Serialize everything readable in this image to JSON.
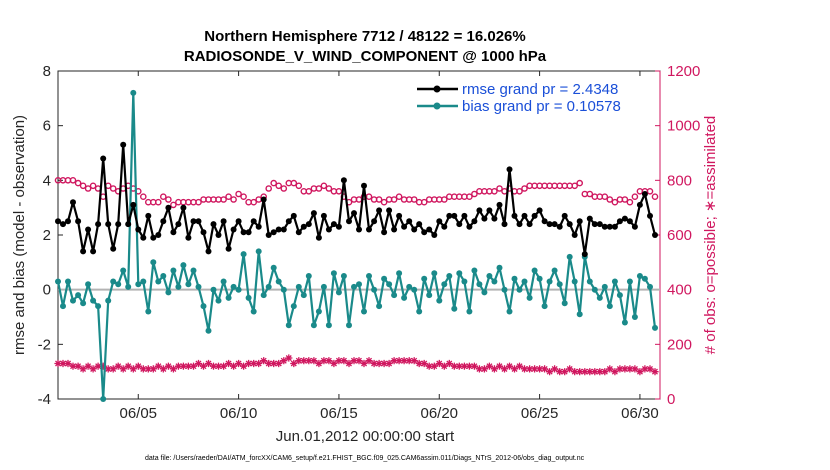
{
  "chart_data": {
    "type": "line",
    "title": "Northern Hemisphere 7712 / 48122 = 16.026%",
    "subtitle": "RADIOSONDE_V_WIND_COMPONENT @ 1000 hPa",
    "xlabel": "Jun.01,2012 00:00:00 start",
    "ylabel_left": "rmse and bias (model - observation)",
    "ylabel_right": "# of obs: o=possible; ∗=assimilated",
    "footnote": "data file: /Users/raeder/DAI/ATM_forcXX/CAM6_setup/f.e21.FHIST_BGC.f09_025.CAM6assim.011/Diags_NTrS_2012-06/obs_diag_output.nc",
    "x_ticks": [
      "06/05",
      "06/10",
      "06/15",
      "06/20",
      "06/25",
      "06/30"
    ],
    "x_tick_days": [
      5,
      10,
      15,
      20,
      25,
      30
    ],
    "xlim_days": [
      1.0,
      31.0
    ],
    "ylim_left": [
      -4,
      8
    ],
    "yticks_left": [
      "-4",
      "-2",
      "0",
      "2",
      "4",
      "6",
      "8"
    ],
    "ylim_right": [
      0,
      1200
    ],
    "yticks_right": [
      "0",
      "200",
      "400",
      "600",
      "800",
      "1000",
      "1200"
    ],
    "legend_position": "top-right",
    "zero_line": 0,
    "x_days": [
      1.0,
      1.25,
      1.5,
      1.75,
      2.0,
      2.25,
      2.5,
      2.75,
      3.0,
      3.25,
      3.5,
      3.75,
      4.0,
      4.25,
      4.5,
      4.75,
      5.0,
      5.25,
      5.5,
      5.75,
      6.0,
      6.25,
      6.5,
      6.75,
      7.0,
      7.25,
      7.5,
      7.75,
      8.0,
      8.25,
      8.5,
      8.75,
      9.0,
      9.25,
      9.5,
      9.75,
      10.0,
      10.25,
      10.5,
      10.75,
      11.0,
      11.25,
      11.5,
      11.75,
      12.0,
      12.25,
      12.5,
      12.75,
      13.0,
      13.25,
      13.5,
      13.75,
      14.0,
      14.25,
      14.5,
      14.75,
      15.0,
      15.25,
      15.5,
      15.75,
      16.0,
      16.25,
      16.5,
      16.75,
      17.0,
      17.25,
      17.5,
      17.75,
      18.0,
      18.25,
      18.5,
      18.75,
      19.0,
      19.25,
      19.5,
      19.75,
      20.0,
      20.25,
      20.5,
      20.75,
      21.0,
      21.25,
      21.5,
      21.75,
      22.0,
      22.25,
      22.5,
      22.75,
      23.0,
      23.25,
      23.5,
      23.75,
      24.0,
      24.25,
      24.5,
      24.75,
      25.0,
      25.25,
      25.5,
      25.75,
      26.0,
      26.25,
      26.5,
      26.75,
      27.0,
      27.25,
      27.5,
      27.75,
      28.0,
      28.25,
      28.5,
      28.75,
      29.0,
      29.25,
      29.5,
      29.75,
      30.0,
      30.25,
      30.5,
      30.75
    ],
    "series": [
      {
        "name": "rmse grand pr = 2.4348",
        "axis": "left",
        "color": "#000000",
        "marker": "filled-circle",
        "values": [
          2.5,
          2.4,
          2.5,
          3.2,
          2.5,
          1.4,
          2.2,
          1.4,
          2.4,
          4.8,
          2.4,
          1.5,
          2.4,
          5.3,
          2.4,
          3.1,
          2.2,
          1.9,
          2.7,
          1.9,
          2.0,
          2.5,
          3.0,
          2.1,
          2.4,
          3.0,
          1.9,
          2.5,
          2.5,
          2.1,
          1.4,
          2.4,
          2.0,
          2.5,
          1.5,
          2.2,
          2.5,
          2.1,
          2.1,
          2.5,
          2.3,
          3.3,
          2.0,
          2.1,
          2.2,
          2.2,
          2.5,
          2.7,
          2.1,
          2.3,
          2.4,
          2.8,
          1.9,
          2.7,
          2.2,
          2.4,
          2.3,
          4.0,
          2.5,
          2.8,
          2.2,
          3.8,
          2.2,
          2.5,
          2.9,
          2.1,
          2.9,
          2.2,
          2.7,
          2.3,
          2.5,
          2.2,
          2.4,
          2.1,
          2.2,
          2.0,
          2.5,
          2.3,
          2.7,
          2.7,
          2.4,
          2.7,
          2.3,
          2.5,
          2.9,
          2.6,
          2.9,
          2.6,
          3.1,
          2.4,
          4.4,
          2.7,
          2.4,
          2.7,
          2.4,
          2.7,
          2.9,
          2.5,
          2.4,
          2.4,
          2.3,
          2.7,
          2.4,
          2.0,
          2.5,
          1.3,
          2.6,
          2.4,
          2.4,
          2.3,
          2.3,
          2.3,
          2.5,
          2.6,
          2.5,
          2.3,
          3.1,
          3.5,
          2.7,
          2.0
        ]
      },
      {
        "name": "bias grand pr = 0.10578",
        "axis": "left",
        "color": "#1a8a8a",
        "marker": "filled-circle",
        "values": [
          0.3,
          -0.6,
          0.3,
          -0.4,
          -0.2,
          -0.5,
          0.2,
          -0.4,
          -0.6,
          -4.0,
          -0.4,
          0.3,
          0.2,
          0.7,
          0.1,
          7.2,
          0.2,
          0.3,
          -0.8,
          1.0,
          0.3,
          0.5,
          -0.1,
          0.7,
          0.1,
          0.9,
          0.2,
          0.7,
          0.1,
          -0.6,
          -1.5,
          0.0,
          -0.4,
          0.3,
          -0.3,
          0.1,
          0.0,
          1.3,
          -0.3,
          -0.8,
          1.4,
          -0.2,
          0.1,
          0.8,
          0.3,
          0.0,
          -1.3,
          -0.6,
          0.1,
          -0.2,
          0.5,
          -1.3,
          -0.8,
          0.1,
          -1.3,
          0.6,
          -0.1,
          0.5,
          -1.3,
          0.1,
          0.2,
          -0.8,
          0.5,
          0.0,
          -0.6,
          0.4,
          0.2,
          -0.2,
          0.6,
          -0.3,
          0.1,
          0.0,
          -0.8,
          0.4,
          -0.2,
          0.6,
          -0.4,
          0.2,
          0.5,
          -0.7,
          0.6,
          0.3,
          -0.8,
          0.7,
          0.2,
          -0.1,
          0.5,
          0.3,
          0.8,
          0.0,
          -0.8,
          0.4,
          0.0,
          0.3,
          -0.3,
          0.7,
          0.4,
          -0.6,
          0.3,
          0.7,
          0.2,
          -0.5,
          1.2,
          0.3,
          -0.9,
          1.2,
          0.3,
          0.0,
          -0.3,
          0.1,
          -0.6,
          0.3,
          -0.2,
          -1.2,
          0.3,
          -1.0,
          0.5,
          0.4,
          0.1,
          -1.4
        ]
      },
      {
        "name": "possible",
        "axis": "right",
        "color": "#d0175f",
        "marker": "open-circle",
        "values": [
          800,
          800,
          800,
          800,
          790,
          780,
          770,
          780,
          770,
          740,
          780,
          770,
          760,
          770,
          780,
          770,
          760,
          740,
          720,
          720,
          720,
          740,
          730,
          710,
          720,
          720,
          720,
          720,
          720,
          730,
          730,
          730,
          730,
          730,
          740,
          730,
          750,
          740,
          720,
          720,
          730,
          740,
          770,
          790,
          780,
          770,
          790,
          790,
          780,
          760,
          760,
          770,
          770,
          780,
          770,
          760,
          760,
          740,
          720,
          730,
          730,
          740,
          740,
          730,
          730,
          720,
          730,
          730,
          740,
          730,
          730,
          730,
          720,
          720,
          730,
          730,
          730,
          730,
          740,
          740,
          740,
          740,
          740,
          750,
          760,
          760,
          760,
          760,
          770,
          760,
          770,
          760,
          760,
          770,
          780,
          780,
          780,
          780,
          780,
          780,
          780,
          780,
          780,
          780,
          790,
          750,
          750,
          740,
          740,
          740,
          730,
          720,
          730,
          730,
          720,
          740,
          760,
          760,
          760,
          740
        ]
      },
      {
        "name": "assimilated",
        "axis": "right",
        "color": "#d0175f",
        "marker": "asterisk",
        "values": [
          130,
          130,
          130,
          120,
          120,
          110,
          120,
          110,
          120,
          120,
          110,
          110,
          120,
          110,
          120,
          110,
          120,
          110,
          110,
          110,
          120,
          110,
          120,
          110,
          120,
          120,
          120,
          120,
          130,
          120,
          130,
          120,
          120,
          120,
          130,
          120,
          130,
          120,
          130,
          130,
          130,
          140,
          130,
          130,
          130,
          140,
          150,
          130,
          140,
          140,
          140,
          140,
          130,
          140,
          140,
          130,
          140,
          140,
          130,
          140,
          140,
          130,
          140,
          130,
          130,
          130,
          130,
          140,
          140,
          140,
          140,
          140,
          130,
          130,
          120,
          120,
          130,
          120,
          130,
          120,
          120,
          120,
          120,
          120,
          110,
          110,
          120,
          110,
          120,
          110,
          120,
          110,
          120,
          110,
          110,
          110,
          110,
          110,
          100,
          110,
          100,
          100,
          110,
          100,
          100,
          100,
          100,
          100,
          100,
          100,
          110,
          100,
          110,
          110,
          110,
          110,
          100,
          110,
          110,
          100
        ]
      }
    ]
  }
}
